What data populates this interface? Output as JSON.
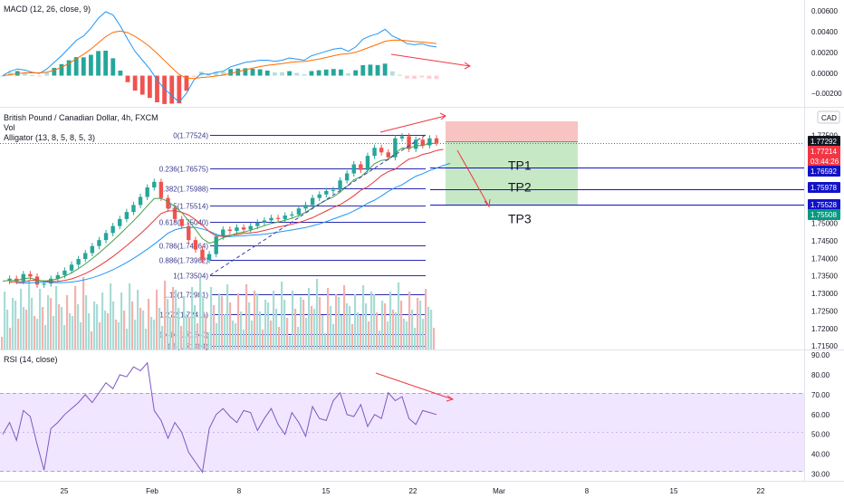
{
  "panels": {
    "macd_title": "MACD (12, 26, close, 9)",
    "main_title": "British Pound / Canadian Dollar, 4h, FXCM",
    "vol_label": "Vol",
    "alligator_label": "Alligator (13, 8, 5, 8, 5, 3)",
    "rsi_title": "RSI (14, close)",
    "currency": "CAD"
  },
  "macd_axis": [
    "0.00600",
    "0.00400",
    "0.00200",
    "0.00000",
    "−0.00200"
  ],
  "price_axis": [
    "1.77500",
    "1.75000",
    "1.74500",
    "1.74000",
    "1.73500",
    "1.73000",
    "1.72500",
    "1.72000",
    "1.71500"
  ],
  "rsi_axis": [
    "90.00",
    "80.00",
    "70.00",
    "60.00",
    "50.00",
    "40.00",
    "30.00"
  ],
  "time_axis": [
    "25",
    "Feb",
    "8",
    "15",
    "22",
    "Mar",
    "8",
    "15",
    "22"
  ],
  "price_tags": [
    {
      "text": "1.77292",
      "color": "#131722"
    },
    {
      "text": "1.77214",
      "color": "#f23645"
    },
    {
      "text": "03:44:26",
      "color": "#f23645"
    },
    {
      "text": "1.76592",
      "color": "#1212c8"
    },
    {
      "text": "1.75978",
      "color": "#1212c8"
    },
    {
      "text": "1.75528",
      "color": "#1212c8"
    },
    {
      "text": "1.75508",
      "color": "#089981"
    }
  ],
  "fib_levels": [
    {
      "label": "0(1.77524)",
      "price": 1.77524
    },
    {
      "label": "0.236(1.76575)",
      "price": 1.76575
    },
    {
      "label": "0.382(1.75988)",
      "price": 1.75988
    },
    {
      "label": "0.5(1.75514)",
      "price": 1.75514
    },
    {
      "label": "0.618(1.75040)",
      "price": 1.7504
    },
    {
      "label": "0.786(1.74364)",
      "price": 1.74364
    },
    {
      "label": "0.886(1.73962)",
      "price": 1.73962
    },
    {
      "label": "1(1.73504)",
      "price": 1.73504
    },
    {
      "label": "1.13(1.72981)",
      "price": 1.72981
    },
    {
      "label": "1.272(1.72411)",
      "price": 1.72411
    },
    {
      "label": "1.414(1.71840)",
      "price": 1.7184
    },
    {
      "label": "1.5(1.71494)",
      "price": 1.71494
    }
  ],
  "targets": [
    {
      "label": "TP1",
      "price": 1.76592
    },
    {
      "label": "TP2",
      "price": 1.75978
    },
    {
      "label": "TP3",
      "price": 1.75528
    }
  ],
  "chart_data": {
    "type": "candlestick",
    "symbol": "British Pound / Canadian Dollar, 4h, FXCM",
    "price_range": [
      1.714,
      1.7775
    ],
    "rsi_range": [
      28,
      90
    ],
    "macd_range": [
      -0.0025,
      0.0062
    ],
    "close_path": [
      1.7335,
      1.7342,
      1.7335,
      1.7355,
      1.7348,
      1.7325,
      1.7328,
      1.7342,
      1.7352,
      1.7365,
      1.7382,
      1.7398,
      1.7415,
      1.7435,
      1.7452,
      1.7472,
      1.7492,
      1.7512,
      1.7532,
      1.7552,
      1.7575,
      1.7602,
      1.7618,
      1.7572,
      1.7542,
      1.7512,
      1.7492,
      1.7452,
      1.7425,
      1.7395,
      1.7412,
      1.7462,
      1.7482,
      1.7478,
      1.7488,
      1.7482,
      1.7492,
      1.7502,
      1.7508,
      1.7515,
      1.7512,
      1.7522,
      1.7525,
      1.7542,
      1.7552,
      1.7572,
      1.7582,
      1.7592,
      1.7595,
      1.7622,
      1.7642,
      1.7668,
      1.7652,
      1.7692,
      1.7715,
      1.7702,
      1.7688,
      1.7742,
      1.7748,
      1.7712,
      1.7738,
      1.7722,
      1.7742,
      1.7729
    ],
    "rsi_path": [
      50,
      56,
      47,
      62,
      59,
      45,
      32,
      53,
      56,
      60,
      63,
      66,
      70,
      66,
      71,
      76,
      73,
      80,
      79,
      84,
      82,
      86,
      62,
      57,
      48,
      56,
      51,
      41,
      36,
      31,
      53,
      60,
      63,
      59,
      56,
      62,
      61,
      52,
      58,
      63,
      55,
      50,
      61,
      56,
      49,
      64,
      58,
      57,
      67,
      71,
      60,
      59,
      65,
      54,
      60,
      58,
      71,
      67,
      69,
      58,
      55,
      62,
      61,
      60
    ],
    "macd_path": [
      0.0,
      0.0004,
      0.0006,
      0.0005,
      0.0003,
      0.0002,
      0.0006,
      0.0012,
      0.0018,
      0.0025,
      0.0032,
      0.0036,
      0.0043,
      0.0052,
      0.0058,
      0.0055,
      0.0045,
      0.0033,
      0.0022,
      0.0014,
      0.0006,
      -0.0004,
      -0.0012,
      -0.0018,
      -0.0024,
      -0.0016,
      -0.0004,
      0.0002,
      0.0001,
      0.0003,
      0.0004,
      0.0008,
      0.001,
      0.0012,
      0.0013,
      0.0014,
      0.0014,
      0.0013,
      0.0014,
      0.0016,
      0.0015,
      0.0014,
      0.0018,
      0.002,
      0.0022,
      0.0024,
      0.0025,
      0.0022,
      0.0026,
      0.0033,
      0.0036,
      0.0038,
      0.0042,
      0.0036,
      0.0033,
      0.0029,
      0.0028,
      0.0029,
      0.0027,
      0.0026
    ]
  }
}
